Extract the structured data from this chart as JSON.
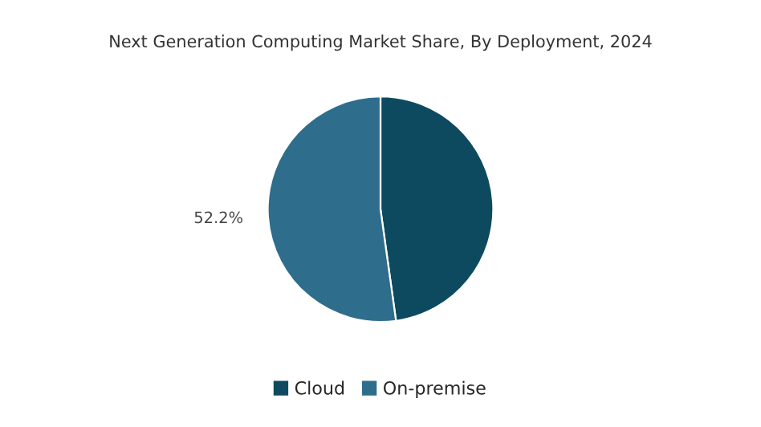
{
  "chart_data": {
    "type": "pie",
    "title": "Next Generation Computing Market Share, By Deployment, 2024",
    "categories": [
      "Cloud",
      "On-premise"
    ],
    "values": [
      47.8,
      52.2
    ],
    "colors": [
      "#0e4a5f",
      "#2f6d8c"
    ],
    "value_labels": [
      null,
      "52.2%"
    ],
    "legend": "bottom"
  }
}
